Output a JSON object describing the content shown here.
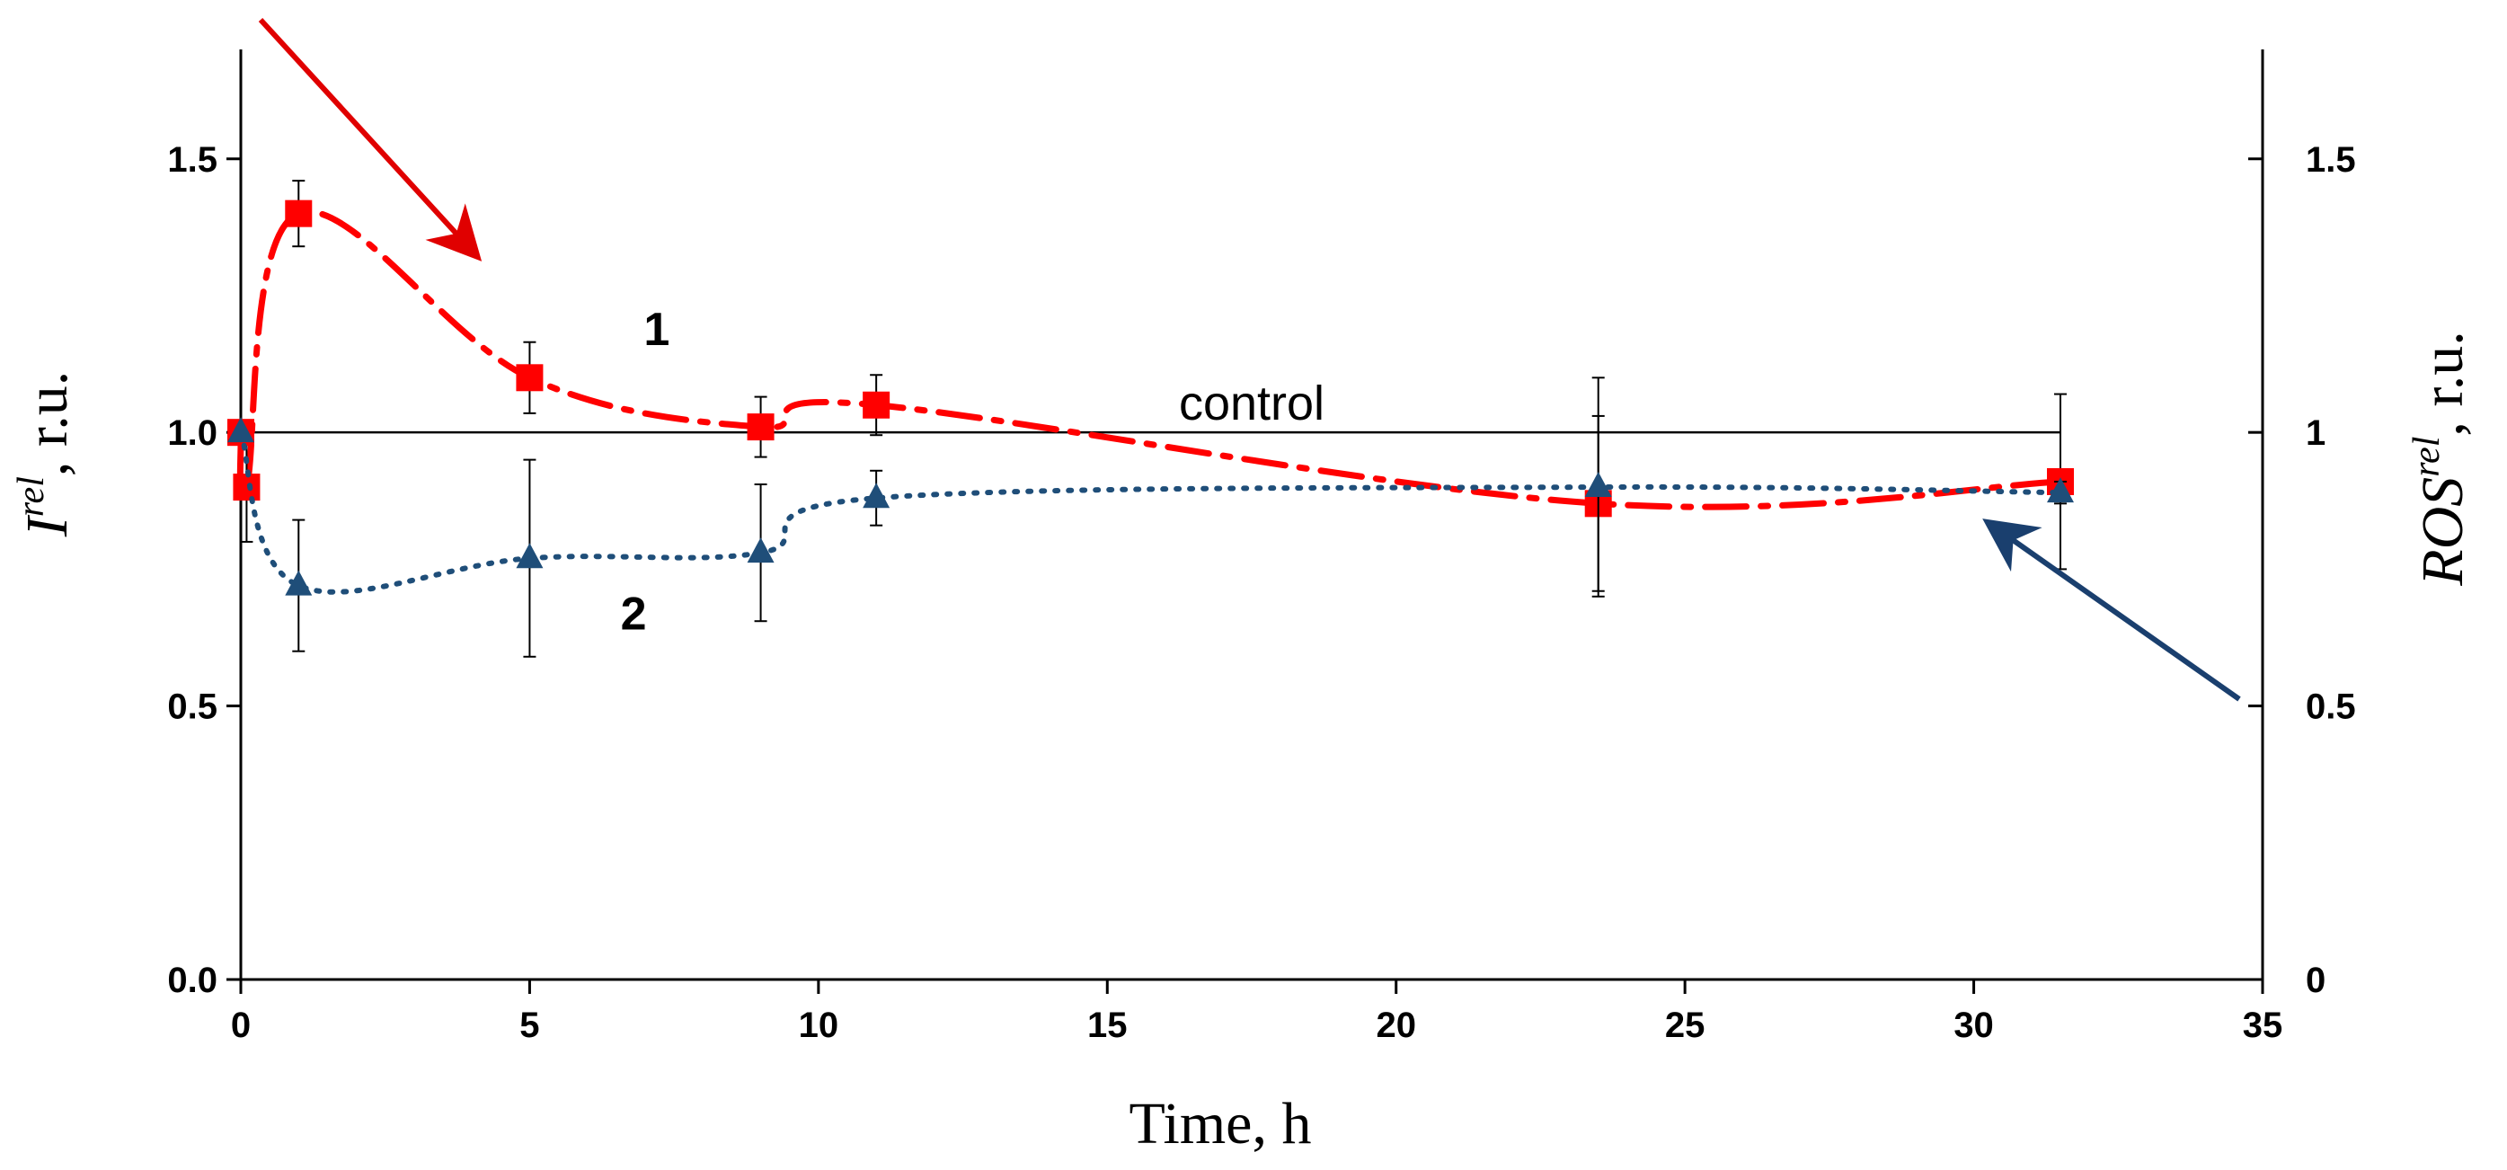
{
  "chart_data": {
    "type": "line",
    "xlabel": "Time, h",
    "ylabel_left": {
      "main": "I",
      "sup": "rel",
      "unit": ", r.u."
    },
    "ylabel_right": {
      "main": "ROS",
      "sup": "rel",
      "unit": ", r.u."
    },
    "xlim": [
      0,
      35
    ],
    "ylim": [
      0,
      1.7
    ],
    "x_ticks": [
      0,
      5,
      10,
      15,
      20,
      25,
      30,
      35
    ],
    "x_tick_labels": [
      "0",
      "5",
      "10",
      "15",
      "20",
      "25",
      "30",
      "35"
    ],
    "y_left_ticks": [
      0,
      0.5,
      1.0,
      1.5
    ],
    "y_left_tick_labels": [
      "0.0",
      "0.5",
      "1.0",
      "1.5"
    ],
    "y_right_ticks": [
      0,
      0.5,
      1,
      1.5
    ],
    "y_right_tick_labels": [
      "0",
      "0.5",
      "1",
      "1.5"
    ],
    "grid": false,
    "control_line": {
      "y": 1.0,
      "label": "control"
    },
    "series": [
      {
        "label": "1",
        "axis": "left",
        "color": "#ff0000",
        "marker": "square",
        "line_style": "dash-dot",
        "points": [
          {
            "x": 0,
            "y": 1.0,
            "err": 0
          },
          {
            "x": 0.1,
            "y": 0.9,
            "err": 0.1
          },
          {
            "x": 1,
            "y": 1.4,
            "err": 0.06
          },
          {
            "x": 5,
            "y": 1.1,
            "err": 0.065
          },
          {
            "x": 9,
            "y": 1.01,
            "err": 0.055
          },
          {
            "x": 11,
            "y": 1.05,
            "err": 0.055
          },
          {
            "x": 23.5,
            "y": 0.87,
            "err": 0.16
          },
          {
            "x": 31.5,
            "y": 0.91,
            "err": 0.16
          }
        ]
      },
      {
        "label": "2",
        "axis": "right",
        "color": "#1f4e79",
        "marker": "triangle",
        "line_style": "dotted",
        "points": [
          {
            "x": 0,
            "y": 1.0,
            "err": 0
          },
          {
            "x": 1,
            "y": 0.72,
            "err": 0.12
          },
          {
            "x": 5,
            "y": 0.77,
            "err": 0.18
          },
          {
            "x": 9,
            "y": 0.78,
            "err": 0.125
          },
          {
            "x": 11,
            "y": 0.88,
            "err": 0.05
          },
          {
            "x": 23.5,
            "y": 0.9,
            "err": 0.2
          },
          {
            "x": 31.5,
            "y": 0.89,
            "err": 0.02
          }
        ]
      }
    ]
  }
}
